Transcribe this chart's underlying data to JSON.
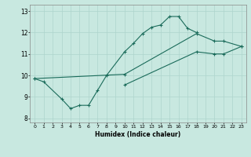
{
  "xlabel": "Humidex (Indice chaleur)",
  "ylabel": "",
  "xlim": [
    -0.5,
    23.5
  ],
  "ylim": [
    7.8,
    13.3
  ],
  "xticks": [
    0,
    1,
    2,
    3,
    4,
    5,
    6,
    7,
    8,
    9,
    10,
    11,
    12,
    13,
    14,
    15,
    16,
    17,
    18,
    19,
    20,
    21,
    22,
    23
  ],
  "yticks": [
    8,
    9,
    10,
    11,
    12,
    13
  ],
  "bg_color": "#c8e8e0",
  "line_color": "#1a6b5a",
  "grid_color": "#aed4cc",
  "line1_x": [
    0,
    1,
    3,
    4,
    5,
    6,
    7,
    8,
    10,
    11,
    12,
    13,
    14,
    15,
    16,
    17,
    18
  ],
  "line1_y": [
    9.85,
    9.7,
    8.9,
    8.45,
    8.6,
    8.6,
    9.3,
    10.0,
    11.1,
    11.5,
    11.95,
    12.25,
    12.35,
    12.75,
    12.75,
    12.2,
    12.0
  ],
  "line2_x": [
    0,
    10,
    18,
    20,
    21,
    23
  ],
  "line2_y": [
    9.85,
    10.05,
    11.95,
    11.6,
    11.6,
    11.35
  ],
  "line3_x": [
    10,
    18,
    20,
    21,
    23
  ],
  "line3_y": [
    9.55,
    11.1,
    11.0,
    11.0,
    11.35
  ]
}
